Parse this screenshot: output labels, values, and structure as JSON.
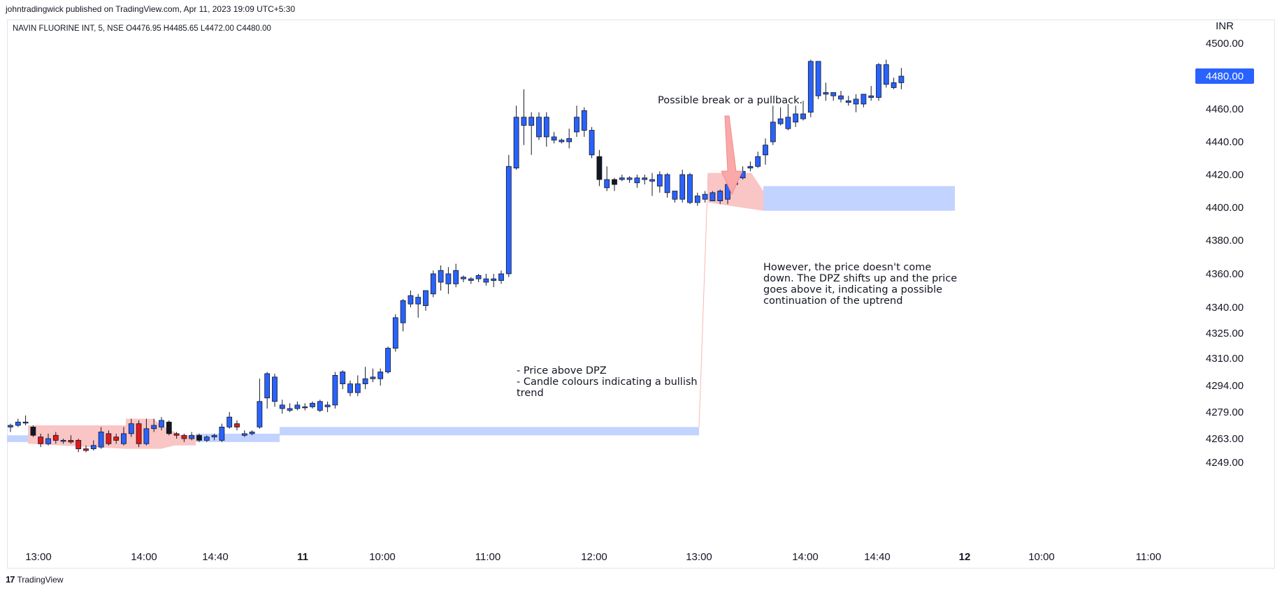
{
  "published": "johntradingwick published on TradingView.com, Apr 11, 2023 19:09 UTC+5:30",
  "symbol_line": "NAVIN FLUORINE INT, 5, NSE  O4476.95  H4485.65  L4472.00  C4480.00",
  "footer_brand": "TradingView",
  "chart_data": {
    "type": "candlestick",
    "currency": "INR",
    "current_price": "4480.00",
    "yticks": [
      "4500.00",
      "4480.00",
      "4460.00",
      "4440.00",
      "4420.00",
      "4400.00",
      "4380.00",
      "4360.00",
      "4340.00",
      "4325.00",
      "4310.00",
      "4294.00",
      "4279.00",
      "4263.00",
      "4249.00"
    ],
    "xticks": [
      "13:00",
      "14:00",
      "14:40",
      "11",
      "10:00",
      "11:00",
      "12:00",
      "13:00",
      "14:00",
      "14:40",
      "12",
      "10:00",
      "11:00"
    ],
    "annotations": [
      "Possible break or a pullback.",
      "However, the price doesn't come",
      "down. The DPZ shifts up and the price",
      "goes above it, indicating a possible",
      "continuation of the uptrend",
      "- Price above DPZ",
      "- Candle colours indicating a bullish",
      "trend"
    ],
    "colors": {
      "up": "#2962ff",
      "down": "#e0191c",
      "neutral": "#131722",
      "dpz_blue": "#c2d3ff",
      "dpz_red": "#f9c5c5",
      "price_label": "#2962ff"
    },
    "candles": [
      [
        4270,
        4271,
        4267,
        4272
      ],
      [
        4271,
        4273,
        4270,
        4275
      ],
      [
        4273,
        4273,
        4271,
        4277
      ],
      [
        4270,
        4265,
        4264,
        4271
      ],
      [
        4264,
        4260,
        4258,
        4266
      ],
      [
        4260,
        4263,
        4259,
        4266
      ],
      [
        4265,
        4262,
        4260,
        4267
      ],
      [
        4262,
        4262,
        4260,
        4263
      ],
      [
        4262,
        4261,
        4260,
        4265
      ],
      [
        4262,
        4257,
        4255,
        4263
      ],
      [
        4257,
        4256,
        4255,
        4259
      ],
      [
        4257,
        4259,
        4256,
        4262
      ],
      [
        4258,
        4267,
        4257,
        4270
      ],
      [
        4266,
        4260,
        4259,
        4268
      ],
      [
        4264,
        4262,
        4260,
        4266
      ],
      [
        4260,
        4266,
        4259,
        4270
      ],
      [
        4266,
        4272,
        4264,
        4275
      ],
      [
        4272,
        4260,
        4258,
        4274
      ],
      [
        4260,
        4269,
        4259,
        4275
      ],
      [
        4269,
        4271,
        4267,
        4275
      ],
      [
        4270,
        4274,
        4268,
        4276
      ],
      [
        4273,
        4266,
        4265,
        4274
      ],
      [
        4266,
        4265,
        4263,
        4267
      ],
      [
        4265,
        4263,
        4261,
        4266
      ],
      [
        4263,
        4265,
        4262,
        4267
      ],
      [
        4265,
        4262,
        4261,
        4266
      ],
      [
        4262,
        4264,
        4261,
        4265
      ],
      [
        4264,
        4265,
        4262,
        4266
      ],
      [
        4262,
        4270,
        4261,
        4272
      ],
      [
        4270,
        4276,
        4269,
        4279
      ],
      [
        4272,
        4270,
        4268,
        4274
      ],
      [
        4265,
        4266,
        4264,
        4268
      ],
      [
        4266,
        4267,
        4265,
        4268
      ],
      [
        4270,
        4285,
        4269,
        4298
      ],
      [
        4287,
        4301,
        4281,
        4302
      ],
      [
        4299,
        4285,
        4282,
        4301
      ],
      [
        4283,
        4281,
        4278,
        4286
      ],
      [
        4280,
        4281,
        4279,
        4284
      ],
      [
        4281,
        4283,
        4280,
        4285
      ],
      [
        4282,
        4282,
        4280,
        4284
      ],
      [
        4282,
        4284,
        4281,
        4285
      ],
      [
        4280,
        4285,
        4279,
        4286
      ],
      [
        4282,
        4283,
        4279,
        4285
      ],
      [
        4283,
        4300,
        4281,
        4302
      ],
      [
        4302,
        4295,
        4292,
        4303
      ],
      [
        4295,
        4290,
        4288,
        4297
      ],
      [
        4290,
        4295,
        4288,
        4300
      ],
      [
        4295,
        4298,
        4292,
        4305
      ],
      [
        4298,
        4299,
        4296,
        4304
      ],
      [
        4298,
        4302,
        4294,
        4304
      ],
      [
        4302,
        4316,
        4301,
        4317
      ],
      [
        4316,
        4334,
        4314,
        4336
      ],
      [
        4331,
        4344,
        4326,
        4345
      ],
      [
        4342,
        4347,
        4340,
        4350
      ],
      [
        4346,
        4342,
        4334,
        4348
      ],
      [
        4341,
        4350,
        4338,
        4350
      ],
      [
        4348,
        4360,
        4346,
        4362
      ],
      [
        4355,
        4362,
        4350,
        4365
      ],
      [
        4360,
        4354,
        4348,
        4364
      ],
      [
        4354,
        4362,
        4352,
        4366
      ],
      [
        4357,
        4358,
        4355,
        4359
      ],
      [
        4356,
        4357,
        4354,
        4358
      ],
      [
        4357,
        4359,
        4355,
        4360
      ],
      [
        4355,
        4357,
        4353,
        4360
      ],
      [
        4356,
        4357,
        4352,
        4360
      ],
      [
        4356,
        4360,
        4354,
        4362
      ],
      [
        4360,
        4425,
        4358,
        4432
      ],
      [
        4424,
        4455,
        4423,
        4462
      ],
      [
        4455,
        4450,
        4438,
        4472
      ],
      [
        4450,
        4455,
        4432,
        4458
      ],
      [
        4455,
        4443,
        4441,
        4458
      ],
      [
        4443,
        4455,
        4437,
        4458
      ],
      [
        4441,
        4443,
        4439,
        4446
      ],
      [
        4441,
        4440,
        4439,
        4442
      ],
      [
        4440,
        4442,
        4436,
        4448
      ],
      [
        4446,
        4455,
        4443,
        4462
      ],
      [
        4459,
        4447,
        4443,
        4461
      ],
      [
        4447,
        4432,
        4430,
        4449
      ],
      [
        4431,
        4417,
        4413,
        4435
      ],
      [
        4417,
        4412,
        4410,
        4425
      ],
      [
        4414,
        4417,
        4410,
        4418
      ],
      [
        4418,
        4417,
        4416,
        4420
      ],
      [
        4417,
        4418,
        4415,
        4419
      ],
      [
        4418,
        4415,
        4412,
        4420
      ],
      [
        4418,
        4417,
        4414,
        4420
      ],
      [
        4417,
        4416,
        4407,
        4421
      ],
      [
        4413,
        4420,
        4409,
        4422
      ],
      [
        4420,
        4409,
        4406,
        4421
      ],
      [
        4410,
        4405,
        4403,
        4410
      ],
      [
        4405,
        4420,
        4403,
        4423
      ],
      [
        4420,
        4403,
        4402,
        4421
      ],
      [
        4403,
        4407,
        4401,
        4409
      ],
      [
        4405,
        4408,
        4403,
        4410
      ],
      [
        4404,
        4409,
        4404,
        4410
      ],
      [
        4410,
        4404,
        4402,
        4411
      ],
      [
        4405,
        4414,
        4402,
        4416
      ],
      [
        4414,
        4415,
        4413,
        4416
      ],
      [
        4418,
        4422,
        4417,
        4425
      ],
      [
        4424,
        4425,
        4422,
        4428
      ],
      [
        4425,
        4431,
        4424,
        4434
      ],
      [
        4432,
        4438,
        4426,
        4442
      ],
      [
        4440,
        4452,
        4438,
        4462
      ],
      [
        4454,
        4451,
        4450,
        4461
      ],
      [
        4448,
        4455,
        4447,
        4463
      ],
      [
        4452,
        4457,
        4449,
        4462
      ],
      [
        4454,
        4457,
        4453,
        4465
      ],
      [
        4458,
        4489,
        4455,
        4490
      ],
      [
        4489,
        4468,
        4466,
        4489
      ],
      [
        4469,
        4470,
        4465,
        4476
      ],
      [
        4470,
        4468,
        4465,
        4470
      ],
      [
        4468,
        4466,
        4464,
        4471
      ],
      [
        4464,
        4465,
        4462,
        4468
      ],
      [
        4463,
        4466,
        4458,
        4469
      ],
      [
        4463,
        4469,
        4461,
        4469
      ],
      [
        4468,
        4467,
        4465,
        4474
      ],
      [
        4467,
        4487,
        4465,
        4488
      ],
      [
        4487,
        4475,
        4473,
        4490
      ],
      [
        4473,
        4476,
        4472,
        4479
      ],
      [
        4476,
        4480,
        4472,
        4485
      ]
    ]
  }
}
